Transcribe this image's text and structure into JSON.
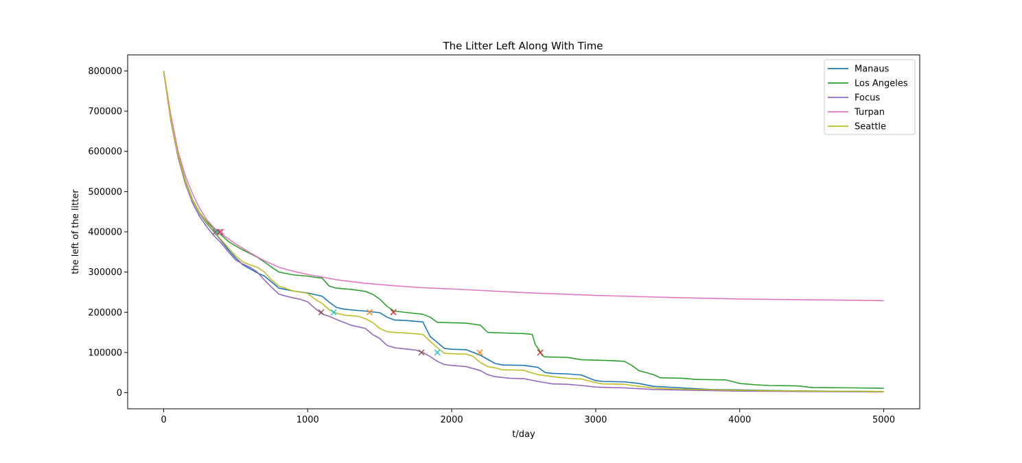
{
  "chart_data": {
    "type": "line",
    "title": "The Litter Left Along With Time",
    "xlabel": "t/day",
    "ylabel": "the left of the litter",
    "xlim": [
      -250,
      5250
    ],
    "ylim": [
      -40000,
      840000
    ],
    "xticks": [
      0,
      1000,
      2000,
      3000,
      4000,
      5000
    ],
    "yticks": [
      0,
      100000,
      200000,
      300000,
      400000,
      500000,
      600000,
      700000,
      800000
    ],
    "grid": false,
    "legend_position": "top-right",
    "series": [
      {
        "name": "Manaus",
        "color": "#1f77b4",
        "points": [
          [
            0,
            800000
          ],
          [
            50,
            680000
          ],
          [
            100,
            590000
          ],
          [
            150,
            525000
          ],
          [
            200,
            478000
          ],
          [
            250,
            445000
          ],
          [
            300,
            420000
          ],
          [
            350,
            400000
          ],
          [
            400,
            378000
          ],
          [
            450,
            355000
          ],
          [
            500,
            335000
          ],
          [
            550,
            318000
          ],
          [
            600,
            308000
          ],
          [
            650,
            298000
          ],
          [
            700,
            290000
          ],
          [
            760,
            272000
          ],
          [
            800,
            260000
          ],
          [
            900,
            253000
          ],
          [
            1000,
            248000
          ],
          [
            1050,
            244000
          ],
          [
            1100,
            240000
          ],
          [
            1150,
            225000
          ],
          [
            1200,
            212000
          ],
          [
            1250,
            208000
          ],
          [
            1300,
            206000
          ],
          [
            1400,
            203000
          ],
          [
            1500,
            199000
          ],
          [
            1550,
            188000
          ],
          [
            1600,
            181000
          ],
          [
            1700,
            179000
          ],
          [
            1800,
            176000
          ],
          [
            1850,
            140000
          ],
          [
            1900,
            125000
          ],
          [
            1950,
            110000
          ],
          [
            2000,
            108000
          ],
          [
            2100,
            107000
          ],
          [
            2200,
            93000
          ],
          [
            2300,
            73000
          ],
          [
            2350,
            69000
          ],
          [
            2500,
            68000
          ],
          [
            2600,
            63000
          ],
          [
            2650,
            50000
          ],
          [
            2700,
            48000
          ],
          [
            2800,
            47000
          ],
          [
            2900,
            44000
          ],
          [
            3000,
            30000
          ],
          [
            3050,
            28000
          ],
          [
            3200,
            27000
          ],
          [
            3300,
            23000
          ],
          [
            3400,
            16000
          ],
          [
            3500,
            14000
          ],
          [
            3600,
            12000
          ],
          [
            3800,
            8000
          ],
          [
            4000,
            7000
          ],
          [
            4300,
            5000
          ],
          [
            4600,
            4000
          ],
          [
            5000,
            3000
          ]
        ]
      },
      {
        "name": "Los Angeles",
        "color": "#2ca02c",
        "points": [
          [
            0,
            800000
          ],
          [
            50,
            680000
          ],
          [
            100,
            592000
          ],
          [
            150,
            528000
          ],
          [
            200,
            480000
          ],
          [
            250,
            447000
          ],
          [
            300,
            425000
          ],
          [
            350,
            408000
          ],
          [
            400,
            392000
          ],
          [
            450,
            376000
          ],
          [
            500,
            365000
          ],
          [
            550,
            355000
          ],
          [
            600,
            346000
          ],
          [
            650,
            337000
          ],
          [
            700,
            325000
          ],
          [
            750,
            312000
          ],
          [
            800,
            300000
          ],
          [
            900,
            293000
          ],
          [
            1000,
            290000
          ],
          [
            1050,
            287000
          ],
          [
            1100,
            285000
          ],
          [
            1150,
            265000
          ],
          [
            1200,
            260000
          ],
          [
            1300,
            257000
          ],
          [
            1400,
            252000
          ],
          [
            1450,
            245000
          ],
          [
            1500,
            233000
          ],
          [
            1550,
            215000
          ],
          [
            1600,
            203000
          ],
          [
            1700,
            199000
          ],
          [
            1800,
            195000
          ],
          [
            1850,
            188000
          ],
          [
            1900,
            175000
          ],
          [
            2000,
            174000
          ],
          [
            2100,
            173000
          ],
          [
            2200,
            168000
          ],
          [
            2250,
            150000
          ],
          [
            2400,
            148000
          ],
          [
            2500,
            147000
          ],
          [
            2560,
            145000
          ],
          [
            2580,
            120000
          ],
          [
            2610,
            105000
          ],
          [
            2630,
            92000
          ],
          [
            2650,
            89000
          ],
          [
            2800,
            88000
          ],
          [
            2900,
            82000
          ],
          [
            3000,
            81000
          ],
          [
            3100,
            80000
          ],
          [
            3200,
            78000
          ],
          [
            3250,
            68000
          ],
          [
            3300,
            55000
          ],
          [
            3350,
            50000
          ],
          [
            3400,
            45000
          ],
          [
            3450,
            37000
          ],
          [
            3600,
            36000
          ],
          [
            3700,
            33000
          ],
          [
            3900,
            32000
          ],
          [
            3950,
            28000
          ],
          [
            4000,
            23000
          ],
          [
            4100,
            20000
          ],
          [
            4200,
            18000
          ],
          [
            4400,
            17000
          ],
          [
            4500,
            13000
          ],
          [
            4800,
            12000
          ],
          [
            5000,
            11000
          ]
        ]
      },
      {
        "name": "Focus",
        "color": "#9467bd",
        "points": [
          [
            0,
            800000
          ],
          [
            50,
            675000
          ],
          [
            100,
            585000
          ],
          [
            150,
            520000
          ],
          [
            200,
            472000
          ],
          [
            250,
            438000
          ],
          [
            300,
            412000
          ],
          [
            350,
            390000
          ],
          [
            400,
            372000
          ],
          [
            450,
            350000
          ],
          [
            500,
            330000
          ],
          [
            550,
            320000
          ],
          [
            600,
            312000
          ],
          [
            650,
            300000
          ],
          [
            700,
            280000
          ],
          [
            750,
            262000
          ],
          [
            800,
            245000
          ],
          [
            850,
            240000
          ],
          [
            900,
            236000
          ],
          [
            950,
            232000
          ],
          [
            1000,
            226000
          ],
          [
            1050,
            210000
          ],
          [
            1100,
            196000
          ],
          [
            1150,
            190000
          ],
          [
            1200,
            182000
          ],
          [
            1300,
            168000
          ],
          [
            1400,
            160000
          ],
          [
            1450,
            145000
          ],
          [
            1500,
            135000
          ],
          [
            1550,
            118000
          ],
          [
            1600,
            112000
          ],
          [
            1700,
            108000
          ],
          [
            1750,
            106000
          ],
          [
            1800,
            100000
          ],
          [
            1850,
            90000
          ],
          [
            1900,
            78000
          ],
          [
            1950,
            70000
          ],
          [
            2000,
            68000
          ],
          [
            2100,
            65000
          ],
          [
            2200,
            55000
          ],
          [
            2250,
            45000
          ],
          [
            2300,
            40000
          ],
          [
            2400,
            36000
          ],
          [
            2500,
            35000
          ],
          [
            2600,
            28000
          ],
          [
            2700,
            22000
          ],
          [
            2800,
            21000
          ],
          [
            2900,
            18000
          ],
          [
            3000,
            14000
          ],
          [
            3200,
            12000
          ],
          [
            3300,
            10000
          ],
          [
            3400,
            8000
          ],
          [
            3700,
            6000
          ],
          [
            4000,
            4000
          ],
          [
            4500,
            3000
          ],
          [
            5000,
            2000
          ]
        ]
      },
      {
        "name": "Turpan",
        "color": "#e377c2",
        "points": [
          [
            0,
            800000
          ],
          [
            50,
            690000
          ],
          [
            100,
            600000
          ],
          [
            150,
            540000
          ],
          [
            200,
            495000
          ],
          [
            250,
            458000
          ],
          [
            300,
            430000
          ],
          [
            350,
            410000
          ],
          [
            400,
            395000
          ],
          [
            500,
            370000
          ],
          [
            600,
            348000
          ],
          [
            700,
            328000
          ],
          [
            800,
            312000
          ],
          [
            900,
            302000
          ],
          [
            1000,
            294000
          ],
          [
            1200,
            281000
          ],
          [
            1400,
            272000
          ],
          [
            1600,
            266000
          ],
          [
            1800,
            261000
          ],
          [
            2000,
            258000
          ],
          [
            2500,
            249000
          ],
          [
            3000,
            242000
          ],
          [
            3500,
            237000
          ],
          [
            4000,
            233000
          ],
          [
            4500,
            231000
          ],
          [
            5000,
            229000
          ]
        ]
      },
      {
        "name": "Seattle",
        "color": "#bcbd22",
        "points": [
          [
            0,
            800000
          ],
          [
            50,
            678000
          ],
          [
            100,
            590000
          ],
          [
            150,
            525000
          ],
          [
            200,
            478000
          ],
          [
            250,
            446000
          ],
          [
            300,
            422000
          ],
          [
            350,
            402000
          ],
          [
            400,
            380000
          ],
          [
            450,
            360000
          ],
          [
            500,
            340000
          ],
          [
            550,
            325000
          ],
          [
            600,
            318000
          ],
          [
            650,
            312000
          ],
          [
            700,
            300000
          ],
          [
            750,
            280000
          ],
          [
            800,
            265000
          ],
          [
            900,
            253000
          ],
          [
            1000,
            247000
          ],
          [
            1050,
            233000
          ],
          [
            1100,
            222000
          ],
          [
            1150,
            206000
          ],
          [
            1200,
            198000
          ],
          [
            1250,
            193000
          ],
          [
            1350,
            190000
          ],
          [
            1400,
            184000
          ],
          [
            1450,
            175000
          ],
          [
            1500,
            160000
          ],
          [
            1550,
            152000
          ],
          [
            1600,
            150000
          ],
          [
            1700,
            148000
          ],
          [
            1800,
            145000
          ],
          [
            1850,
            128000
          ],
          [
            1900,
            112000
          ],
          [
            1950,
            98000
          ],
          [
            2000,
            97000
          ],
          [
            2100,
            96000
          ],
          [
            2150,
            90000
          ],
          [
            2200,
            75000
          ],
          [
            2250,
            65000
          ],
          [
            2300,
            62000
          ],
          [
            2350,
            57000
          ],
          [
            2500,
            56000
          ],
          [
            2550,
            50000
          ],
          [
            2600,
            45000
          ],
          [
            2700,
            40000
          ],
          [
            2800,
            36000
          ],
          [
            2900,
            34000
          ],
          [
            3000,
            25000
          ],
          [
            3050,
            22000
          ],
          [
            3200,
            21000
          ],
          [
            3300,
            16000
          ],
          [
            3400,
            12000
          ],
          [
            3500,
            10000
          ],
          [
            3700,
            8000
          ],
          [
            4000,
            6000
          ],
          [
            4500,
            4000
          ],
          [
            5000,
            3000
          ]
        ]
      }
    ],
    "markers": [
      {
        "x": 360,
        "y": 400000,
        "color": "#8c564b"
      },
      {
        "x": 375,
        "y": 400000,
        "color": "#17becf"
      },
      {
        "x": 390,
        "y": 400000,
        "color": "#d62728"
      },
      {
        "x": 400,
        "y": 400000,
        "color": "#e377c2"
      },
      {
        "x": 1095,
        "y": 200000,
        "color": "#8c564b"
      },
      {
        "x": 1180,
        "y": 200000,
        "color": "#17becf"
      },
      {
        "x": 1430,
        "y": 200000,
        "color": "#ff7f0e"
      },
      {
        "x": 1595,
        "y": 200000,
        "color": "#d62728"
      },
      {
        "x": 1790,
        "y": 100000,
        "color": "#8c564b"
      },
      {
        "x": 1900,
        "y": 100000,
        "color": "#17becf"
      },
      {
        "x": 2195,
        "y": 100000,
        "color": "#ff7f0e"
      },
      {
        "x": 2615,
        "y": 100000,
        "color": "#d62728"
      }
    ]
  }
}
